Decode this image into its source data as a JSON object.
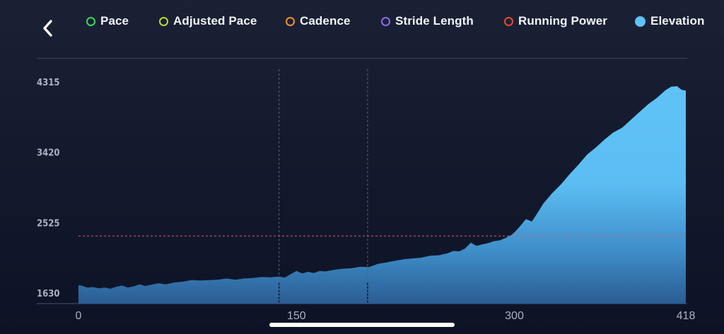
{
  "nav": {
    "back_icon": "chevron-left-icon"
  },
  "legend": [
    {
      "key": "pace",
      "label": "Pace",
      "color": "#3ad95c",
      "filled": false
    },
    {
      "key": "adjusted_pace",
      "label": "Adjusted Pace",
      "color": "#b8e02a",
      "filled": false
    },
    {
      "key": "cadence",
      "label": "Cadence",
      "color": "#f0922a",
      "filled": false
    },
    {
      "key": "stride_length",
      "label": "Stride Length",
      "color": "#8e6cf0",
      "filled": false
    },
    {
      "key": "running_power",
      "label": "Running Power",
      "color": "#e8492e",
      "filled": false
    },
    {
      "key": "elevation",
      "label": "Elevation",
      "color": "#5fc3f7",
      "filled": true
    }
  ],
  "chart_data": {
    "type": "area",
    "series": [
      {
        "name": "Elevation",
        "color": "#5fc3f7",
        "x": [
          0,
          2,
          6,
          10,
          14,
          18,
          22,
          26,
          30,
          34,
          38,
          42,
          46,
          50,
          55,
          60,
          66,
          72,
          78,
          84,
          90,
          96,
          102,
          108,
          114,
          120,
          126,
          132,
          138,
          142,
          146,
          150,
          154,
          158,
          162,
          166,
          170,
          176,
          182,
          188,
          194,
          200,
          206,
          212,
          218,
          224,
          230,
          236,
          242,
          248,
          254,
          258,
          262,
          266,
          270,
          274,
          278,
          282,
          286,
          290,
          294,
          298,
          300,
          304,
          308,
          312,
          316,
          320,
          326,
          332,
          338,
          344,
          350,
          356,
          362,
          368,
          374,
          380,
          386,
          392,
          398,
          404,
          408,
          412,
          415,
          418
        ],
        "y": [
          1730,
          1725,
          1700,
          1705,
          1690,
          1700,
          1685,
          1710,
          1725,
          1700,
          1715,
          1740,
          1720,
          1735,
          1755,
          1740,
          1765,
          1775,
          1795,
          1790,
          1795,
          1800,
          1815,
          1800,
          1815,
          1820,
          1835,
          1830,
          1840,
          1825,
          1870,
          1910,
          1880,
          1900,
          1885,
          1910,
          1905,
          1925,
          1940,
          1945,
          1965,
          1960,
          2000,
          2020,
          2040,
          2060,
          2070,
          2080,
          2105,
          2110,
          2135,
          2165,
          2160,
          2195,
          2270,
          2230,
          2250,
          2265,
          2290,
          2300,
          2330,
          2370,
          2400,
          2480,
          2570,
          2540,
          2650,
          2770,
          2900,
          3010,
          3140,
          3260,
          3390,
          3480,
          3580,
          3670,
          3730,
          3830,
          3930,
          4030,
          4110,
          4210,
          4255,
          4260,
          4215,
          4205
        ]
      }
    ],
    "x_ticks": [
      "0",
      "150",
      "300",
      "418"
    ],
    "y_ticks": [
      "4315",
      "3420",
      "2525",
      "1630"
    ],
    "xlim": [
      0,
      418
    ],
    "ylim": [
      1630,
      4315
    ],
    "reference_line": {
      "y": 2355,
      "color": "#e0566a",
      "style": "dashed"
    },
    "vertical_markers": [
      {
        "x": 138
      },
      {
        "x": 199
      }
    ],
    "grid": false
  }
}
